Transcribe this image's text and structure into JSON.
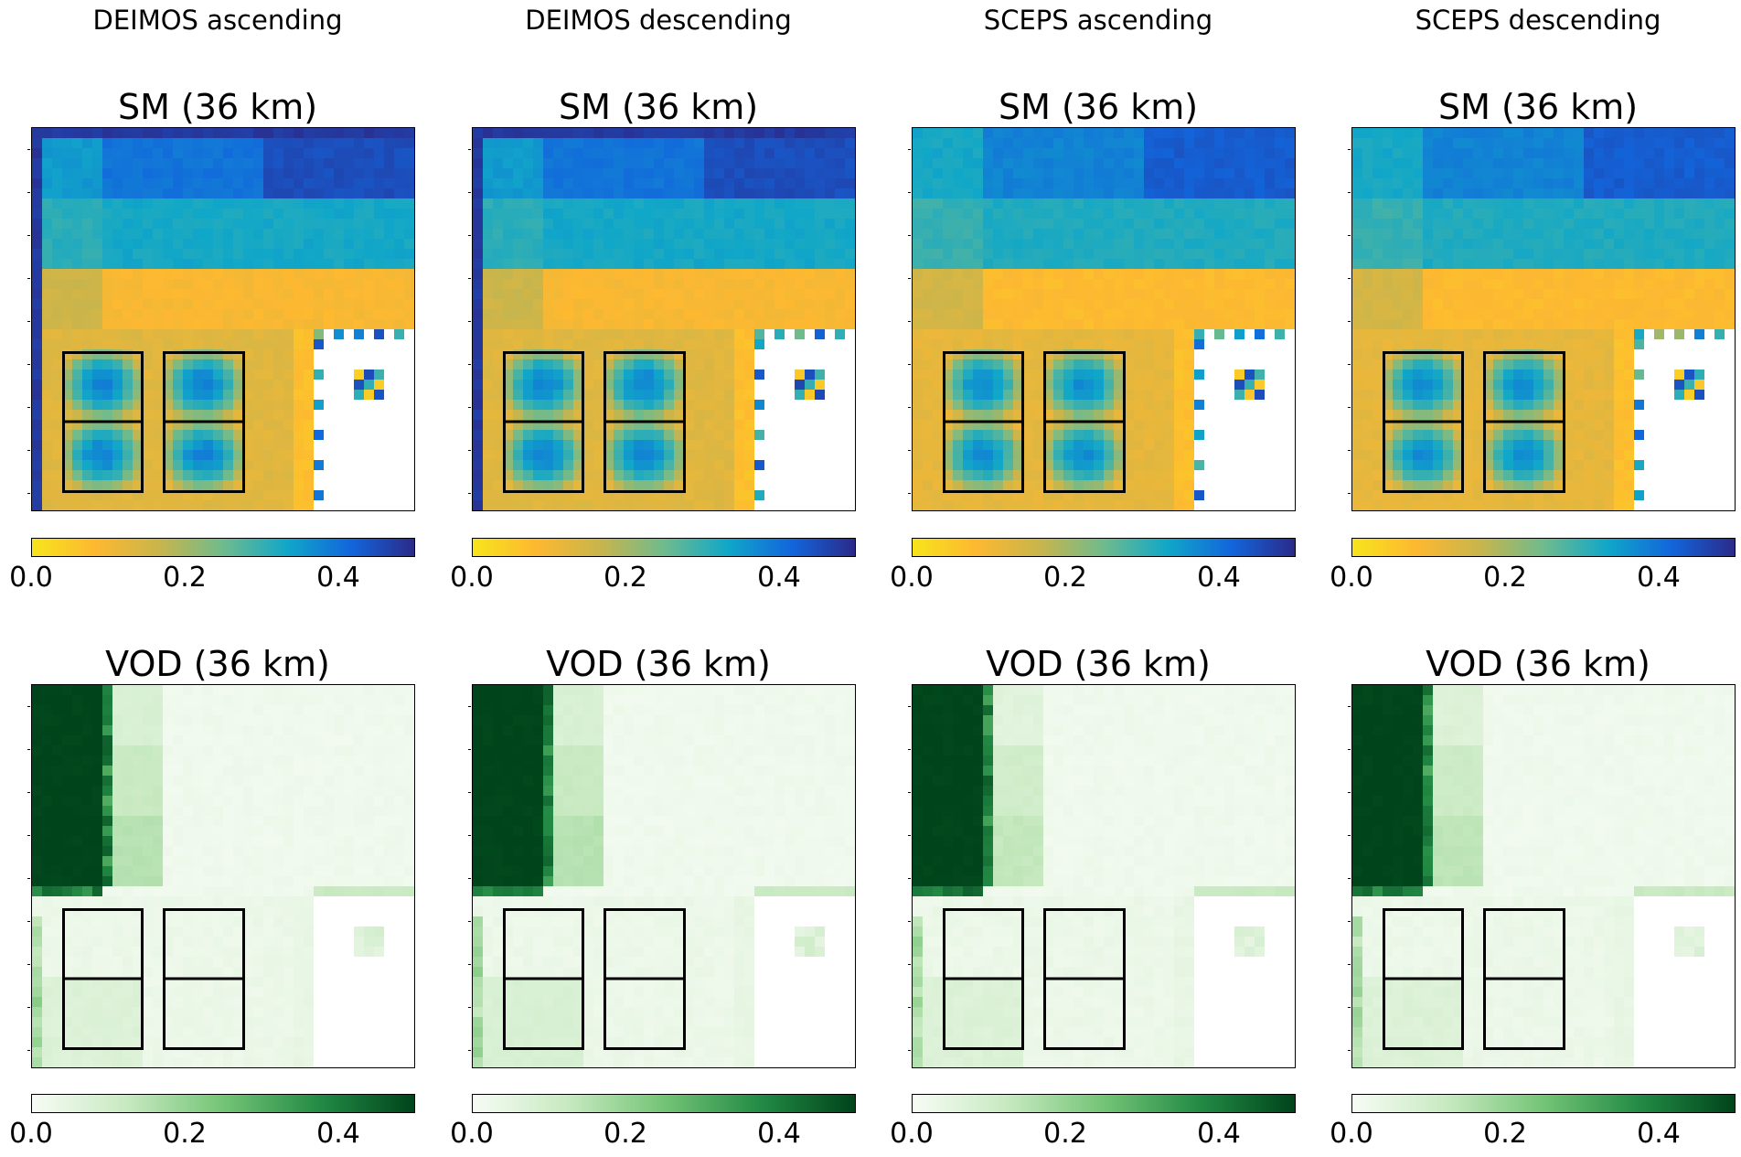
{
  "columns": [
    {
      "title": "DEIMOS ascending",
      "sm_title": "SM (36 km)",
      "vod_title": "VOD (36 km)"
    },
    {
      "title": "DEIMOS descending",
      "sm_title": "SM (36 km)",
      "vod_title": "VOD (36 km)"
    },
    {
      "title": "SCEPS ascending",
      "sm_title": "SM (36 km)",
      "vod_title": "VOD (36 km)"
    },
    {
      "title": "SCEPS descending",
      "sm_title": "SM (36 km)",
      "vod_title": "VOD (36 km)"
    }
  ],
  "colorbars": {
    "sm": {
      "ticks": [
        "0.0",
        "0.2",
        "0.4"
      ],
      "range": [
        0,
        0.5
      ],
      "colors": [
        "#f7e41c",
        "#fdb831",
        "#c8b54c",
        "#6fbb8d",
        "#11a7c8",
        "#1266dc",
        "#2b2a8a"
      ]
    },
    "vod": {
      "ticks": [
        "0.0",
        "0.2",
        "0.4"
      ],
      "range": [
        0,
        0.5
      ],
      "colors": [
        "#f7fcf5",
        "#c7e9c0",
        "#74c476",
        "#238b45",
        "#00441b"
      ]
    }
  },
  "chart_data": [
    {
      "type": "heatmap",
      "title": "SM (36 km)",
      "column": "DEIMOS ascending",
      "variable": "SM",
      "value_range": [
        0,
        0.5
      ],
      "colormap": "yellow-blue",
      "regions": {
        "top_band_row1": 0.43,
        "top_band_row2": 0.41,
        "top_band_row3": 0.31,
        "top_band_row4": 0.11,
        "left_bottom_region": 0.13,
        "box_centers": 0.38,
        "right_white_region": null
      }
    },
    {
      "type": "heatmap",
      "title": "SM (36 km)",
      "column": "DEIMOS descending",
      "variable": "SM",
      "value_range": [
        0,
        0.5
      ],
      "colormap": "yellow-blue",
      "regions": {
        "top_band_row1": 0.43,
        "top_band_row2": 0.41,
        "top_band_row3": 0.31,
        "top_band_row4": 0.11,
        "left_bottom_region": 0.13,
        "box_centers": 0.38,
        "right_white_region": null
      }
    },
    {
      "type": "heatmap",
      "title": "SM (36 km)",
      "column": "SCEPS ascending",
      "variable": "SM",
      "value_range": [
        0,
        0.5
      ],
      "colormap": "yellow-blue",
      "regions": {
        "top_band_row1": 0.41,
        "top_band_row2": 0.4,
        "top_band_row3": 0.3,
        "top_band_row4": 0.1,
        "left_bottom_region": 0.12,
        "box_centers": 0.37,
        "right_white_region": null
      }
    },
    {
      "type": "heatmap",
      "title": "SM (36 km)",
      "column": "SCEPS descending",
      "variable": "SM",
      "value_range": [
        0,
        0.5
      ],
      "colormap": "yellow-blue",
      "regions": {
        "top_band_row1": 0.41,
        "top_band_row2": 0.4,
        "top_band_row3": 0.3,
        "top_band_row4": 0.1,
        "left_bottom_region": 0.12,
        "box_centers": 0.37,
        "right_white_region": null
      }
    },
    {
      "type": "heatmap",
      "title": "VOD (36 km)",
      "column": "DEIMOS ascending",
      "variable": "VOD",
      "value_range": [
        0,
        0.5
      ],
      "colormap": "greens",
      "regions": {
        "dense_forest_top_left": 0.5,
        "moderate_strip": 0.12,
        "background": 0.02,
        "lower_left_region": 0.07,
        "right_white_region": null
      }
    },
    {
      "type": "heatmap",
      "title": "VOD (36 km)",
      "column": "DEIMOS descending",
      "variable": "VOD",
      "value_range": [
        0,
        0.5
      ],
      "colormap": "greens",
      "regions": {
        "dense_forest_top_left": 0.5,
        "moderate_strip": 0.12,
        "background": 0.02,
        "lower_left_region": 0.08,
        "right_white_region": null
      }
    },
    {
      "type": "heatmap",
      "title": "VOD (36 km)",
      "column": "SCEPS ascending",
      "variable": "VOD",
      "value_range": [
        0,
        0.5
      ],
      "colormap": "greens",
      "regions": {
        "dense_forest_top_left": 0.5,
        "moderate_strip": 0.1,
        "background": 0.02,
        "lower_left_region": 0.07,
        "right_white_region": null
      }
    },
    {
      "type": "heatmap",
      "title": "VOD (36 km)",
      "column": "SCEPS descending",
      "variable": "VOD",
      "value_range": [
        0,
        0.5
      ],
      "colormap": "greens",
      "regions": {
        "dense_forest_top_left": 0.5,
        "moderate_strip": 0.11,
        "background": 0.02,
        "lower_left_region": 0.07,
        "right_white_region": null
      }
    }
  ]
}
